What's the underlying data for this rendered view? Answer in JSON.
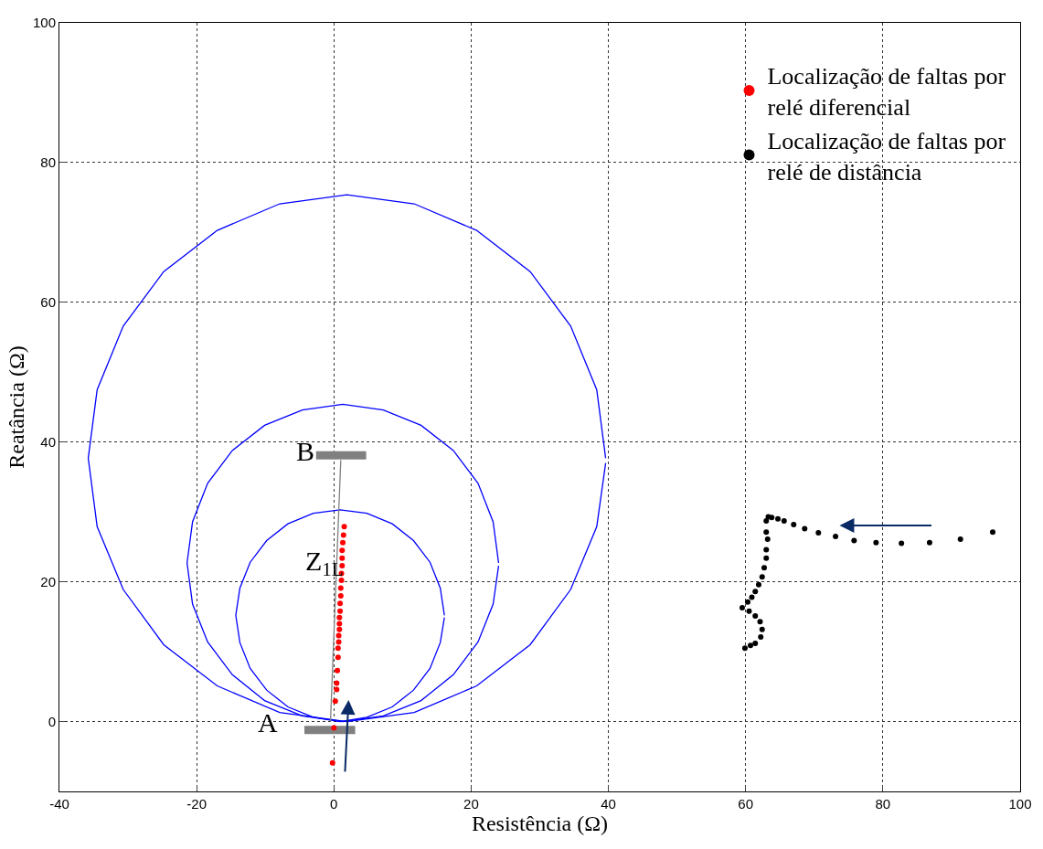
{
  "chart_data": {
    "type": "line",
    "xlabel": "Resistência (Ω)",
    "ylabel": "Reatância (Ω)",
    "xlim": [
      -40,
      100
    ],
    "xticks": [
      -40,
      -20,
      0,
      20,
      40,
      60,
      80,
      100
    ],
    "ylim": [
      -10,
      100
    ],
    "yticks": [
      0,
      20,
      40,
      60,
      80,
      100
    ],
    "grid": true,
    "legend": "top right",
    "line_style": "solid",
    "series": [
      {
        "color": "#0000ff",
        "x": [
          39.6,
          38.3,
          34.5,
          28.6,
          20.8,
          11.7,
          1.9,
          -7.9,
          -17.0,
          -24.8,
          -30.7,
          -34.5,
          -35.8,
          -34.5,
          -30.7,
          -24.8,
          -17.0,
          -7.9,
          1.9,
          11.7,
          20.8,
          28.6,
          34.5,
          38.3,
          39.6
        ],
        "values": [
          37.7,
          47.5,
          56.6,
          64.4,
          70.3,
          74.1,
          75.4,
          74.1,
          70.3,
          64.4,
          56.6,
          47.5,
          37.7,
          27.9,
          18.9,
          11.0,
          5.1,
          1.3,
          0.0,
          1.3,
          5.1,
          11.0,
          18.9,
          27.9,
          37.0
        ]
      },
      {
        "color": "#0000ff",
        "x": [
          24.0,
          23.2,
          21.0,
          17.4,
          12.7,
          7.2,
          1.3,
          -4.6,
          -10.1,
          -14.8,
          -18.4,
          -20.6,
          -21.4,
          -20.6,
          -18.4,
          -14.8,
          -10.1,
          -4.6,
          1.3,
          7.2,
          12.7,
          17.4,
          21.0,
          23.2,
          24.0
        ],
        "values": [
          22.7,
          28.6,
          34.1,
          38.8,
          42.4,
          44.6,
          45.4,
          44.6,
          42.4,
          38.8,
          34.1,
          28.6,
          22.7,
          16.8,
          11.4,
          6.7,
          3.0,
          0.8,
          0.0,
          0.8,
          3.0,
          6.7,
          11.4,
          16.8,
          22.3
        ]
      },
      {
        "color": "#0000ff",
        "x": [
          16.1,
          15.5,
          14.0,
          11.6,
          8.5,
          4.8,
          0.9,
          -3.0,
          -6.7,
          -9.8,
          -12.2,
          -13.7,
          -14.3,
          -13.7,
          -12.2,
          -9.8,
          -6.7,
          -3.0,
          0.9,
          4.8,
          8.5,
          11.6,
          14.0,
          15.5,
          16.1
        ],
        "values": [
          15.2,
          19.1,
          22.8,
          25.9,
          28.3,
          29.8,
          30.3,
          29.8,
          28.3,
          25.9,
          22.8,
          19.1,
          15.2,
          11.3,
          7.6,
          4.5,
          2.1,
          0.6,
          0.0,
          0.6,
          2.1,
          4.5,
          7.6,
          11.3,
          14.9
        ]
      },
      {
        "color": "#808080",
        "x": [
          -0.5,
          1.0
        ],
        "values": [
          0,
          37.4
        ]
      },
      {
        "color": "#808080",
        "x": [
          -2.6,
          4.7
        ],
        "values": [
          38.1,
          38.1
        ]
      },
      {
        "color": "#808080",
        "x": [
          -4.3,
          3.1
        ],
        "values": [
          -1.2,
          -1.2
        ]
      },
      {
        "type": "scatter",
        "marker": "circle",
        "name": "Localização de faltas por\nrelé diferencial",
        "color": "#ff0000",
        "x": [
          -0.2,
          0.0,
          0.2,
          0.4,
          0.4,
          0.5,
          0.6,
          0.6,
          0.7,
          0.7,
          0.8,
          0.8,
          0.8,
          0.9,
          0.9,
          1.0,
          1.0,
          1.1,
          1.1,
          1.2,
          1.2,
          1.2,
          1.3,
          1.4,
          1.5
        ],
        "values": [
          -5.9,
          -0.9,
          2.9,
          4.6,
          5.5,
          7.3,
          9.2,
          10.5,
          11.4,
          12.3,
          13.2,
          14.0,
          14.9,
          15.8,
          16.9,
          18.0,
          19.1,
          20.2,
          21.2,
          22.3,
          23.4,
          24.5,
          25.6,
          26.7,
          27.9
        ]
      },
      {
        "type": "scatter",
        "marker": "circle",
        "name": "Localização de faltas por\nrelé de distância",
        "color": "#000000",
        "x": [
          96.0,
          91.3,
          86.8,
          82.7,
          79.0,
          75.8,
          73.1,
          70.6,
          68.6,
          67.0,
          65.6,
          64.7,
          63.8,
          63.3,
          63.0,
          63.0,
          63.2,
          63.0,
          63.0,
          62.7,
          62.4,
          61.9,
          61.4,
          60.9,
          60.3,
          59.5,
          60.5,
          61.4,
          62.1,
          62.4,
          62.2,
          61.4,
          60.7,
          59.9
        ],
        "values": [
          27.1,
          26.1,
          25.6,
          25.5,
          25.6,
          25.9,
          26.5,
          27.0,
          27.6,
          28.2,
          28.7,
          29.0,
          29.2,
          29.3,
          28.7,
          27.1,
          26.1,
          24.6,
          23.4,
          22.0,
          20.7,
          19.6,
          18.6,
          17.8,
          17.1,
          16.3,
          15.8,
          15.1,
          14.3,
          13.2,
          12.1,
          11.2,
          10.9,
          10.5
        ]
      }
    ],
    "annotations": [
      "B",
      "A",
      "Z$_{1L}$"
    ]
  }
}
